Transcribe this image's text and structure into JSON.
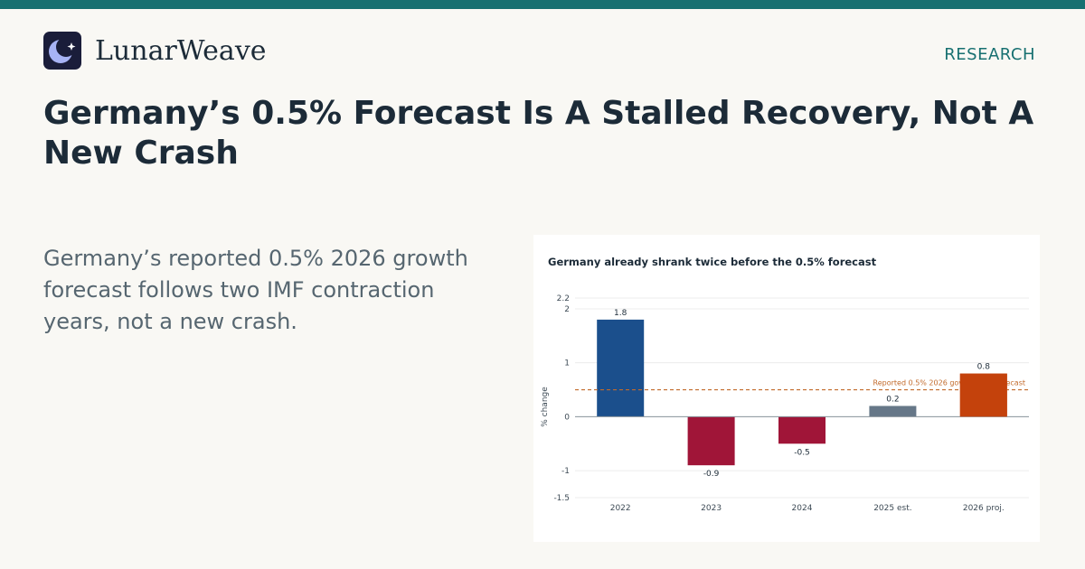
{
  "brand": {
    "name": "LunarWeave",
    "icon": "moon-star-icon"
  },
  "nav": {
    "label": "RESEARCH"
  },
  "headline": {
    "line1": "Germany’s 0.5% Forecast Is A Stalled Recovery, Not A",
    "line2": "New Crash"
  },
  "summary": "Germany’s reported 0.5% 2026 growth forecast follows two IMF contraction years, not a new crash.",
  "colors": {
    "accent": "#177071",
    "positive": "#1b4f8c",
    "negative": "#a01538",
    "estimate": "#667788",
    "projection": "#c4420c",
    "reference": "#c26a2b"
  },
  "chart_data": {
    "type": "bar",
    "title": "Germany already shrank twice before the 0.5% forecast",
    "ylabel": "% change",
    "xlabel": "",
    "categories": [
      "2022",
      "2023",
      "2024",
      "2025 est.",
      "2026 proj."
    ],
    "values": [
      1.8,
      -0.9,
      -0.5,
      0.2,
      0.8
    ],
    "value_labels": [
      "1.8",
      "-0.9",
      "-0.5",
      "0.2",
      "0.8"
    ],
    "bar_colors": [
      "#1b4f8c",
      "#a01538",
      "#a01538",
      "#667788",
      "#c4420c"
    ],
    "ylim": [
      -1.5,
      2.2
    ],
    "yticks": [
      -1.5,
      -1,
      0,
      1,
      2,
      2.2
    ],
    "ytick_labels": [
      "-1.5",
      "-1",
      "0",
      "1",
      "2",
      "2.2"
    ],
    "reference_line": {
      "value": 0.5,
      "label": "Reported 0.5% 2026 government forecast"
    },
    "grid": true
  }
}
